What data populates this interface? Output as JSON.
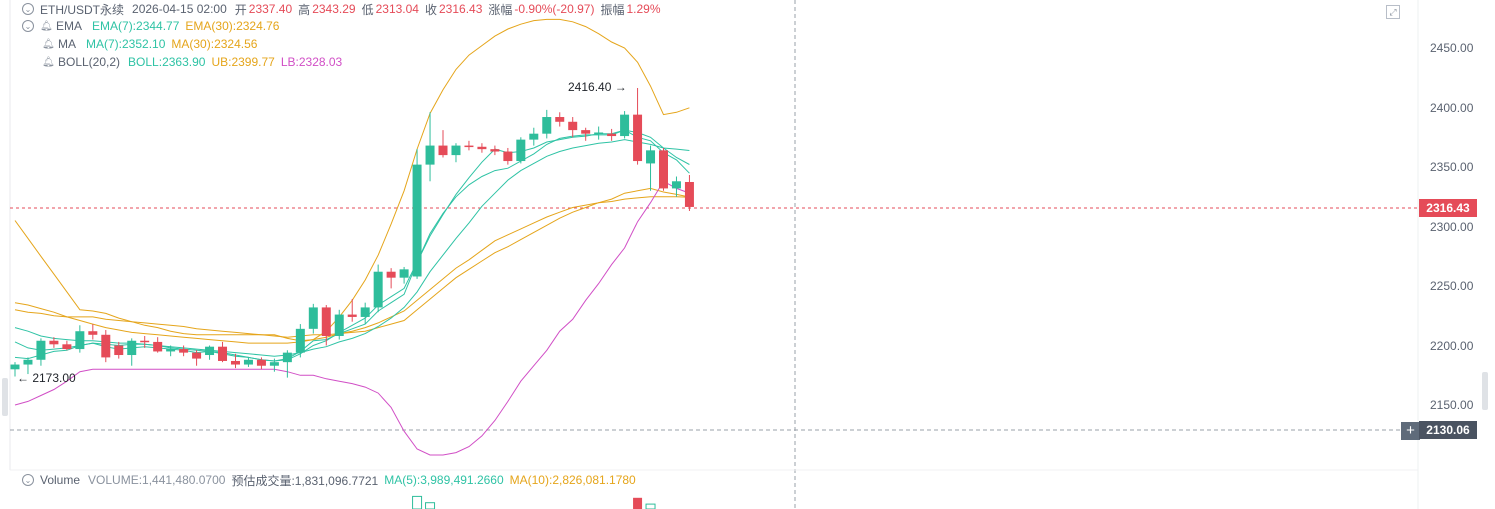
{
  "header": {
    "symbol": "ETH/USDT永续",
    "datetime": "2026-04-15 02:00",
    "open_label": "开",
    "open": "2337.40",
    "high_label": "高",
    "high": "2343.29",
    "low_label": "低",
    "low": "2313.04",
    "close_label": "收",
    "close": "2316.43",
    "change_label": "涨幅",
    "change": "-0.90%(-20.97)",
    "amplitude_label": "振幅",
    "amplitude": "1.29%"
  },
  "indicators": {
    "ema": {
      "name": "EMA",
      "ema7": "EMA(7):2344.77",
      "ema30": "EMA(30):2324.76"
    },
    "ma": {
      "name": "MA",
      "ma7": "MA(7):2352.10",
      "ma30": "MA(30):2324.56"
    },
    "boll": {
      "name": "BOLL(20,2)",
      "mid": "BOLL:2363.90",
      "ub": "UB:2399.77",
      "lb": "LB:2328.03"
    }
  },
  "volume_legend": {
    "name": "Volume",
    "volume": "VOLUME:1,441,480.0700",
    "est": "预估成交量:1,831,096.7721",
    "ma5": "MA(5):3,989,491.2660",
    "ma10": "MA(10):2,826,081.1780"
  },
  "annotations": {
    "high_marker": "2416.40 →",
    "low_marker": "← 2173.00"
  },
  "price_badges": {
    "last": "2316.43",
    "crosshair": "2130.06"
  },
  "colors": {
    "up": "#2ebd9b",
    "down": "#e54b58",
    "ema7": "#2fc3a5",
    "ema30": "#e5a51b",
    "boll_mid": "#2fc3a5",
    "boll_ub": "#e5a51b",
    "boll_lb": "#d14fc6"
  },
  "chart_data": {
    "type": "candlestick",
    "y_ticks": [
      "2450.00",
      "2400.00",
      "2350.00",
      "2300.00",
      "2250.00",
      "2200.00",
      "2150.00"
    ],
    "y_tick_values": [
      2450,
      2400,
      2350,
      2300,
      2250,
      2200,
      2150
    ],
    "ylim": [
      2100,
      2500
    ],
    "candles": [
      {
        "o": 2180,
        "h": 2186,
        "l": 2174,
        "c": 2184
      },
      {
        "o": 2184,
        "h": 2190,
        "l": 2176,
        "c": 2188
      },
      {
        "o": 2188,
        "h": 2206,
        "l": 2183,
        "c": 2204
      },
      {
        "o": 2204,
        "h": 2207,
        "l": 2198,
        "c": 2201
      },
      {
        "o": 2201,
        "h": 2204,
        "l": 2196,
        "c": 2197
      },
      {
        "o": 2197,
        "h": 2217,
        "l": 2194,
        "c": 2212
      },
      {
        "o": 2212,
        "h": 2218,
        "l": 2205,
        "c": 2209
      },
      {
        "o": 2209,
        "h": 2213,
        "l": 2186,
        "c": 2190
      },
      {
        "o": 2200,
        "h": 2203,
        "l": 2189,
        "c": 2192
      },
      {
        "o": 2192,
        "h": 2206,
        "l": 2183,
        "c": 2204
      },
      {
        "o": 2204,
        "h": 2208,
        "l": 2198,
        "c": 2203
      },
      {
        "o": 2203,
        "h": 2207,
        "l": 2194,
        "c": 2195
      },
      {
        "o": 2195,
        "h": 2200,
        "l": 2191,
        "c": 2197
      },
      {
        "o": 2197,
        "h": 2200,
        "l": 2191,
        "c": 2194
      },
      {
        "o": 2194,
        "h": 2196,
        "l": 2183,
        "c": 2189
      },
      {
        "o": 2192,
        "h": 2200,
        "l": 2188,
        "c": 2199
      },
      {
        "o": 2199,
        "h": 2203,
        "l": 2186,
        "c": 2187
      },
      {
        "o": 2187,
        "h": 2193,
        "l": 2181,
        "c": 2184
      },
      {
        "o": 2184,
        "h": 2190,
        "l": 2182,
        "c": 2188
      },
      {
        "o": 2188,
        "h": 2190,
        "l": 2180,
        "c": 2183
      },
      {
        "o": 2183,
        "h": 2189,
        "l": 2178,
        "c": 2186
      },
      {
        "o": 2186,
        "h": 2196,
        "l": 2173,
        "c": 2194
      },
      {
        "o": 2194,
        "h": 2218,
        "l": 2190,
        "c": 2214
      },
      {
        "o": 2214,
        "h": 2235,
        "l": 2210,
        "c": 2232
      },
      {
        "o": 2232,
        "h": 2234,
        "l": 2200,
        "c": 2208
      },
      {
        "o": 2208,
        "h": 2230,
        "l": 2205,
        "c": 2226
      },
      {
        "o": 2226,
        "h": 2239,
        "l": 2220,
        "c": 2224
      },
      {
        "o": 2224,
        "h": 2236,
        "l": 2218,
        "c": 2232
      },
      {
        "o": 2232,
        "h": 2268,
        "l": 2228,
        "c": 2262
      },
      {
        "o": 2262,
        "h": 2265,
        "l": 2248,
        "c": 2257
      },
      {
        "o": 2257,
        "h": 2266,
        "l": 2252,
        "c": 2264
      },
      {
        "o": 2258,
        "h": 2365,
        "l": 2256,
        "c": 2352
      },
      {
        "o": 2352,
        "h": 2396,
        "l": 2338,
        "c": 2368
      },
      {
        "o": 2368,
        "h": 2381,
        "l": 2358,
        "c": 2360
      },
      {
        "o": 2360,
        "h": 2370,
        "l": 2354,
        "c": 2368
      },
      {
        "o": 2368,
        "h": 2372,
        "l": 2364,
        "c": 2367
      },
      {
        "o": 2367,
        "h": 2370,
        "l": 2362,
        "c": 2365
      },
      {
        "o": 2365,
        "h": 2368,
        "l": 2360,
        "c": 2363
      },
      {
        "o": 2363,
        "h": 2366,
        "l": 2352,
        "c": 2355
      },
      {
        "o": 2355,
        "h": 2375,
        "l": 2353,
        "c": 2373
      },
      {
        "o": 2373,
        "h": 2383,
        "l": 2368,
        "c": 2378
      },
      {
        "o": 2378,
        "h": 2398,
        "l": 2374,
        "c": 2392
      },
      {
        "o": 2392,
        "h": 2396,
        "l": 2384,
        "c": 2388
      },
      {
        "o": 2388,
        "h": 2392,
        "l": 2375,
        "c": 2381
      },
      {
        "o": 2381,
        "h": 2383,
        "l": 2372,
        "c": 2378
      },
      {
        "o": 2378,
        "h": 2384,
        "l": 2373,
        "c": 2379
      },
      {
        "o": 2378,
        "h": 2382,
        "l": 2372,
        "c": 2376
      },
      {
        "o": 2376,
        "h": 2397,
        "l": 2374,
        "c": 2394
      },
      {
        "o": 2394,
        "h": 2416.4,
        "l": 2352,
        "c": 2355
      },
      {
        "o": 2353,
        "h": 2368,
        "l": 2330,
        "c": 2364
      },
      {
        "o": 2364,
        "h": 2366,
        "l": 2330,
        "c": 2332
      },
      {
        "o": 2332,
        "h": 2342,
        "l": 2325,
        "c": 2338
      },
      {
        "o": 2337.4,
        "h": 2343.29,
        "l": 2313.04,
        "c": 2316.43
      }
    ],
    "series": [
      {
        "name": "EMA(7)",
        "values": [
          2190,
          2189,
          2192,
          2195,
          2196,
          2200,
          2202,
          2199,
          2197,
          2198,
          2199,
          2198,
          2197,
          2196,
          2194,
          2195,
          2193,
          2191,
          2190,
          2188,
          2187,
          2189,
          2195,
          2204,
          2205,
          2210,
          2214,
          2218,
          2229,
          2236,
          2243,
          2270,
          2294,
          2311,
          2325,
          2335,
          2342,
          2347,
          2349,
          2355,
          2361,
          2369,
          2374,
          2376,
          2377,
          2377,
          2377,
          2381,
          2375,
          2372,
          2362,
          2356,
          2344.77
        ]
      },
      {
        "name": "EMA(30)",
        "values": [
          2230,
          2228,
          2227,
          2225,
          2224,
          2224,
          2224,
          2222,
          2221,
          2220,
          2219,
          2218,
          2217,
          2216,
          2214,
          2213,
          2212,
          2211,
          2210,
          2209,
          2208,
          2207,
          2208,
          2209,
          2209,
          2210,
          2211,
          2212,
          2215,
          2218,
          2221,
          2230,
          2239,
          2248,
          2257,
          2264,
          2271,
          2278,
          2283,
          2289,
          2295,
          2301,
          2307,
          2312,
          2316,
          2320,
          2323,
          2328,
          2330,
          2332,
          2329,
          2327,
          2324.76
        ]
      },
      {
        "name": "MA(7)",
        "values": [
          2203,
          2198,
          2196,
          2197,
          2198,
          2200,
          2202,
          2201,
          2200,
          2201,
          2201,
          2200,
          2198,
          2197,
          2196,
          2195,
          2194,
          2192,
          2190,
          2188,
          2187,
          2188,
          2193,
          2200,
          2204,
          2211,
          2217,
          2223,
          2234,
          2241,
          2248,
          2270,
          2292,
          2310,
          2327,
          2341,
          2354,
          2365,
          2362,
          2363,
          2366,
          2371,
          2373,
          2375,
          2376,
          2378,
          2378,
          2381,
          2379,
          2375,
          2366,
          2358,
          2352.1
        ]
      },
      {
        "name": "MA(30)",
        "values": [
          2236,
          2234,
          2231,
          2228,
          2224,
          2221,
          2218,
          2215,
          2213,
          2211,
          2210,
          2209,
          2208,
          2207,
          2206,
          2205,
          2204,
          2203,
          2202,
          2202,
          2202,
          2202,
          2203,
          2205,
          2207,
          2210,
          2212,
          2215,
          2219,
          2224,
          2229,
          2238,
          2247,
          2256,
          2265,
          2272,
          2280,
          2288,
          2293,
          2298,
          2303,
          2308,
          2312,
          2316,
          2318,
          2320,
          2321,
          2323,
          2324,
          2325,
          2325,
          2325,
          2324.56
        ]
      },
      {
        "name": "BOLL",
        "values": [
          2215,
          2212,
          2208,
          2206,
          2205,
          2204,
          2204,
          2203,
          2202,
          2202,
          2201,
          2200,
          2199,
          2198,
          2197,
          2196,
          2195,
          2194,
          2193,
          2192,
          2191,
          2192,
          2194,
          2197,
          2199,
          2203,
          2206,
          2210,
          2216,
          2223,
          2232,
          2245,
          2262,
          2276,
          2290,
          2303,
          2317,
          2328,
          2339,
          2347,
          2353,
          2359,
          2363,
          2366,
          2368,
          2370,
          2371,
          2373,
          2371,
          2369,
          2366,
          2365,
          2363.9
        ]
      },
      {
        "name": "UB",
        "values": [
          2305,
          2290,
          2275,
          2260,
          2245,
          2230,
          2229,
          2227,
          2223,
          2220,
          2217,
          2215,
          2212,
          2210,
          2209,
          2209,
          2209,
          2209,
          2209,
          2209,
          2209,
          2206,
          2204,
          2205,
          2212,
          2224,
          2238,
          2255,
          2276,
          2302,
          2330,
          2365,
          2395,
          2415,
          2432,
          2444,
          2452,
          2460,
          2466,
          2470,
          2473,
          2474,
          2474,
          2472,
          2468,
          2462,
          2455,
          2450,
          2438,
          2418,
          2394,
          2396,
          2399.77
        ]
      },
      {
        "name": "LB",
        "values": [
          2150,
          2153,
          2158,
          2163,
          2170,
          2178,
          2180,
          2180,
          2180,
          2180,
          2180,
          2180,
          2180,
          2180,
          2180,
          2180,
          2180,
          2180,
          2180,
          2180,
          2180,
          2178,
          2175,
          2175,
          2172,
          2170,
          2168,
          2165,
          2160,
          2148,
          2128,
          2113,
          2108,
          2108,
          2110,
          2115,
          2124,
          2137,
          2153,
          2170,
          2183,
          2196,
          2212,
          2222,
          2238,
          2252,
          2268,
          2282,
          2304,
          2320,
          2338,
          2332,
          2328.03
        ]
      }
    ],
    "last_price": 2316.43,
    "crosshair_price": 2130.06,
    "volume_visible": [
      {
        "i": 31,
        "v": 0.9,
        "dir": "up"
      },
      {
        "i": 32,
        "v": 0.45,
        "dir": "up"
      },
      {
        "i": 48,
        "v": 0.8,
        "dir": "down"
      },
      {
        "i": 49,
        "v": 0.35,
        "dir": "up"
      }
    ]
  }
}
